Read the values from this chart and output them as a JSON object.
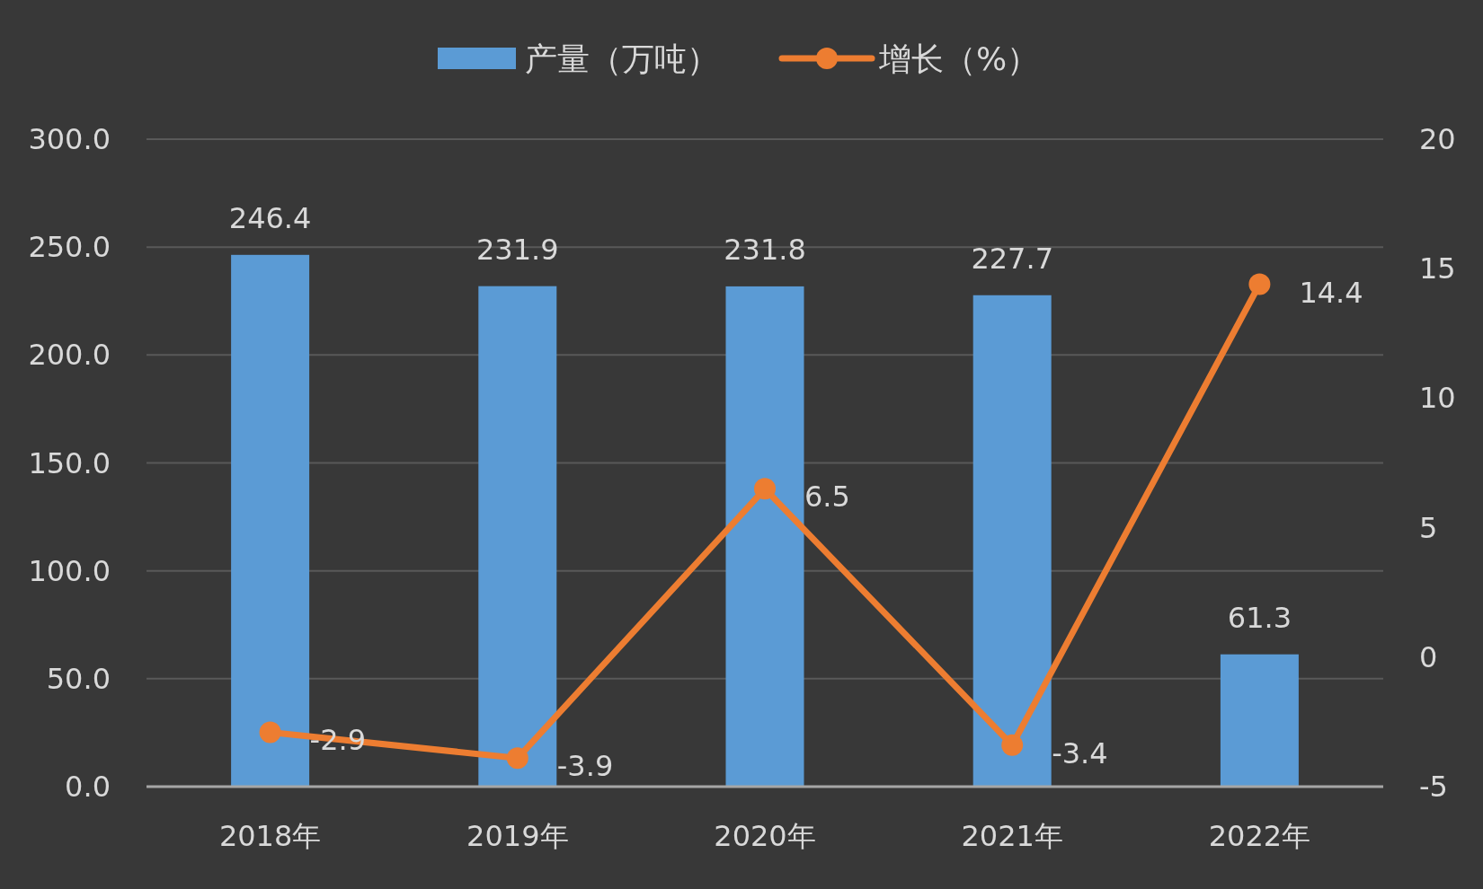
{
  "chart_data": {
    "type": "bar",
    "categories": [
      "2018年",
      "2019年",
      "2020年",
      "2021年",
      "2022年"
    ],
    "series": [
      {
        "name": "产量（万吨）",
        "color": "#5b9bd5",
        "values": [
          246.4,
          231.9,
          231.8,
          227.7,
          61.3
        ]
      },
      {
        "name": "增长（%）",
        "type": "line",
        "axis": "y2",
        "color": "#ed7d31",
        "values": [
          -2.9,
          -3.9,
          6.5,
          -3.4,
          14.4
        ]
      }
    ],
    "ylim": [
      0,
      300
    ],
    "yticks": [
      {
        "value": 0,
        "label": "0.0"
      },
      {
        "value": 50,
        "label": "50.0"
      },
      {
        "value": 100,
        "label": "100.0"
      },
      {
        "value": 150,
        "label": "150.0"
      },
      {
        "value": 200,
        "label": "200.0"
      },
      {
        "value": 250,
        "label": "250.0"
      },
      {
        "value": 300,
        "label": "300.0"
      }
    ],
    "y2lim": [
      -5,
      20
    ],
    "y2ticks": [
      -5,
      0,
      5,
      10,
      15,
      20
    ],
    "grid": "y",
    "legend": "top",
    "marker": "circle",
    "data_labels": true
  }
}
